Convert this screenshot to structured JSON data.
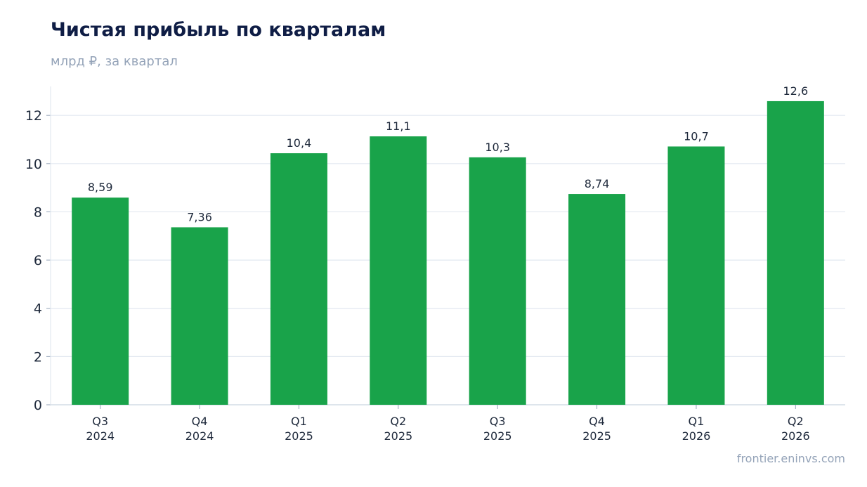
{
  "header": {
    "title": "Чистая прибыль по кварталам",
    "subtitle": "млрд ₽, за квартал"
  },
  "footer": {
    "source": "frontier.eninvs.com"
  },
  "colors": {
    "bar": "#19a34a",
    "title": "#0f1d45",
    "muted": "#94a3b8",
    "grid": "#e2e8f0",
    "text": "#1e293b"
  },
  "chart_data": {
    "type": "bar",
    "title": "Чистая прибыль по кварталам",
    "subtitle": "млрд ₽, за квартал",
    "categories": [
      [
        "Q3",
        "2024"
      ],
      [
        "Q4",
        "2024"
      ],
      [
        "Q1",
        "2025"
      ],
      [
        "Q2",
        "2025"
      ],
      [
        "Q3",
        "2025"
      ],
      [
        "Q4",
        "2025"
      ],
      [
        "Q1",
        "2026"
      ],
      [
        "Q2",
        "2026"
      ]
    ],
    "values": [
      8.59,
      7.36,
      10.43,
      11.13,
      10.26,
      8.74,
      10.71,
      12.59
    ],
    "value_labels": [
      "8,59",
      "7,36",
      "10,4",
      "11,1",
      "10,3",
      "8,74",
      "10,7",
      "12,6"
    ],
    "yticks": [
      0,
      2,
      4,
      6,
      8,
      10,
      12
    ],
    "ylim": [
      0,
      13.2
    ],
    "grid": true,
    "legend": false
  }
}
